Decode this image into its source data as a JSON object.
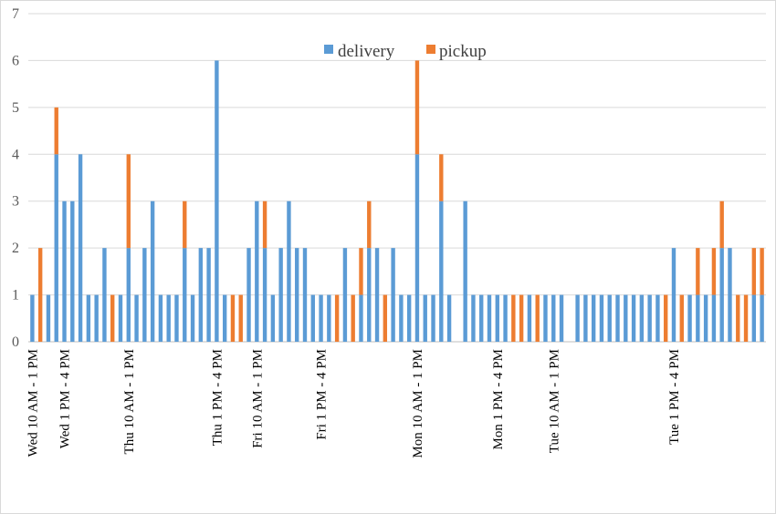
{
  "chart_data": {
    "type": "bar",
    "stacked": true,
    "ylim": [
      0,
      7
    ],
    "yticks": [
      0,
      1,
      2,
      3,
      4,
      5,
      6,
      7
    ],
    "grid": true,
    "legend_position": "top-center",
    "colors": {
      "delivery": "#5b9bd5",
      "pickup": "#ed7d31"
    },
    "x_tick_labels": [
      {
        "index": 0,
        "label": "Wed 10 AM - 1 PM"
      },
      {
        "index": 4,
        "label": "Wed 1 PM - 4 PM"
      },
      {
        "index": 12,
        "label": "Thu 10 AM - 1 PM"
      },
      {
        "index": 23,
        "label": "Thu 1 PM - 4 PM"
      },
      {
        "index": 28,
        "label": "Fri 10 AM - 1 PM"
      },
      {
        "index": 36,
        "label": "Fri 1 PM - 4 PM"
      },
      {
        "index": 48,
        "label": "Mon 10 AM - 1 PM"
      },
      {
        "index": 58,
        "label": "Mon 1 PM - 4 PM"
      },
      {
        "index": 65,
        "label": "Tue 10 AM - 1 PM"
      },
      {
        "index": 80,
        "label": "Tue 1 PM - 4 PM"
      }
    ],
    "series": [
      {
        "name": "delivery",
        "values": [
          1,
          0,
          1,
          4,
          3,
          3,
          4,
          1,
          1,
          2,
          0,
          1,
          2,
          1,
          2,
          3,
          1,
          1,
          1,
          2,
          1,
          2,
          2,
          6,
          1,
          0,
          0,
          2,
          3,
          2,
          1,
          2,
          3,
          2,
          2,
          1,
          1,
          1,
          0,
          2,
          0,
          1,
          2,
          2,
          0,
          2,
          1,
          1,
          4,
          1,
          1,
          3,
          1,
          0,
          3,
          1,
          1,
          1,
          1,
          1,
          0,
          0,
          1,
          0,
          1,
          1,
          1,
          0,
          1,
          1,
          1,
          1,
          1,
          1,
          1,
          1,
          1,
          1,
          1,
          0,
          2,
          0,
          1,
          1,
          1,
          1,
          2,
          2,
          0,
          0,
          1,
          1
        ]
      },
      {
        "name": "pickup",
        "values": [
          0,
          2,
          0,
          1,
          0,
          0,
          0,
          0,
          0,
          0,
          1,
          0,
          2,
          0,
          0,
          0,
          0,
          0,
          0,
          1,
          0,
          0,
          0,
          0,
          0,
          1,
          1,
          0,
          0,
          1,
          0,
          0,
          0,
          0,
          0,
          0,
          0,
          0,
          1,
          0,
          1,
          1,
          1,
          0,
          1,
          0,
          0,
          0,
          2,
          0,
          0,
          1,
          0,
          0,
          0,
          0,
          0,
          0,
          0,
          0,
          1,
          1,
          0,
          1,
          0,
          0,
          0,
          0,
          0,
          0,
          0,
          0,
          0,
          0,
          0,
          0,
          0,
          0,
          0,
          1,
          0,
          1,
          0,
          1,
          0,
          1,
          1,
          0,
          1,
          1,
          1,
          1
        ]
      }
    ]
  }
}
